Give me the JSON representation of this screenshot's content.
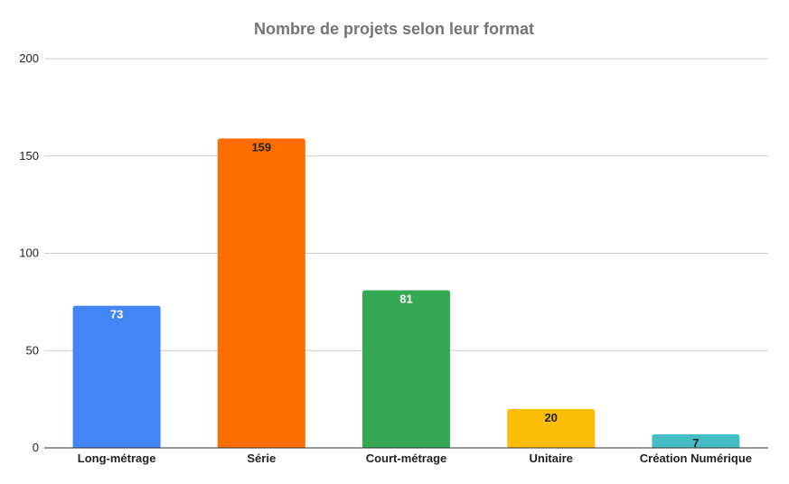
{
  "chart_data": {
    "type": "bar",
    "title": "Nombre de projets selon leur format",
    "xlabel": "",
    "ylabel": "",
    "categories": [
      "Long-métrage",
      "Série",
      "Court-métrage",
      "Unitaire",
      "Création Numérique"
    ],
    "values": [
      73,
      159,
      81,
      20,
      7
    ],
    "colors": [
      "#4285f4",
      "#ff6d01",
      "#34a853",
      "#fbbc04",
      "#46bdc6"
    ],
    "label_colors": [
      "#ffffff",
      "#222222",
      "#ffffff",
      "#222222",
      "#222222"
    ],
    "ylim": [
      0,
      200
    ],
    "yticks": [
      0,
      50,
      100,
      150,
      200
    ],
    "grid": true,
    "legend": "none"
  }
}
